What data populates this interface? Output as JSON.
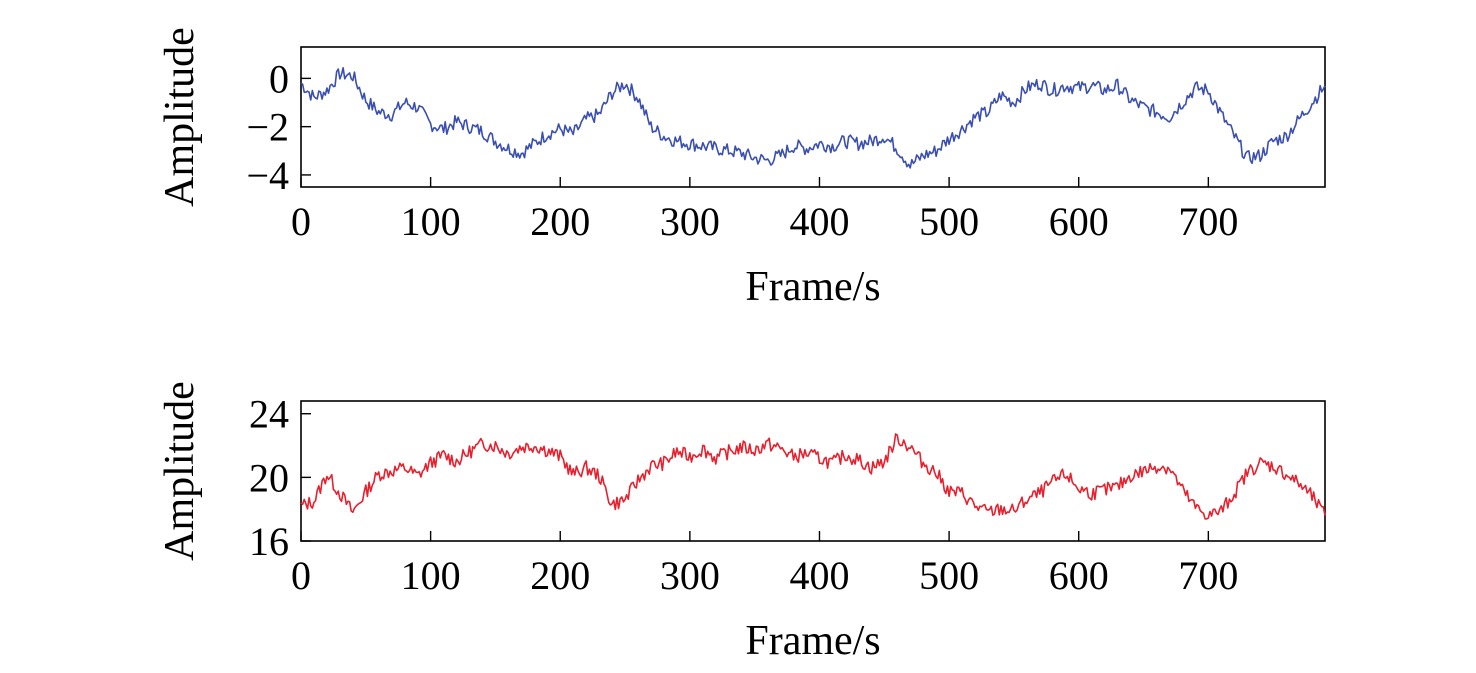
{
  "chart_data": [
    {
      "type": "line",
      "title": "",
      "xlabel": "Frame/s",
      "ylabel": "Amplitude",
      "xlim": [
        0,
        790
      ],
      "ylim": [
        -4.5,
        1.3
      ],
      "xticks": [
        0,
        100,
        200,
        300,
        400,
        500,
        600,
        700
      ],
      "yticks": [
        -4,
        -2,
        0
      ],
      "ytick_labels": [
        "−4",
        "−2",
        "0"
      ],
      "grid": false,
      "series": [
        {
          "color": "#3a4fb0",
          "x": [
            0,
            10,
            20,
            30,
            40,
            50,
            60,
            70,
            80,
            90,
            100,
            110,
            120,
            130,
            140,
            150,
            160,
            170,
            180,
            190,
            200,
            210,
            220,
            230,
            240,
            250,
            260,
            270,
            280,
            290,
            300,
            310,
            320,
            330,
            340,
            350,
            360,
            370,
            380,
            390,
            400,
            410,
            420,
            430,
            440,
            450,
            460,
            470,
            480,
            490,
            500,
            510,
            520,
            530,
            540,
            550,
            560,
            570,
            580,
            590,
            600,
            610,
            620,
            630,
            640,
            650,
            660,
            670,
            680,
            690,
            700,
            710,
            720,
            730,
            740,
            750,
            760,
            770,
            780,
            790
          ],
          "values": [
            -0.2,
            -0.8,
            -0.5,
            0.2,
            0.1,
            -0.9,
            -1.4,
            -1.5,
            -1.0,
            -1.2,
            -1.9,
            -2.1,
            -1.8,
            -2.0,
            -2.2,
            -2.6,
            -2.9,
            -3.1,
            -2.7,
            -2.3,
            -2.1,
            -2.3,
            -1.7,
            -1.5,
            -0.6,
            -0.2,
            -0.8,
            -2.0,
            -2.4,
            -2.6,
            -2.7,
            -2.8,
            -2.9,
            -3.0,
            -3.1,
            -3.3,
            -3.4,
            -3.2,
            -2.8,
            -2.9,
            -2.7,
            -2.8,
            -2.6,
            -2.7,
            -2.6,
            -2.4,
            -2.9,
            -3.6,
            -3.2,
            -3.0,
            -2.5,
            -2.1,
            -1.6,
            -1.4,
            -0.7,
            -1.0,
            -0.4,
            -0.2,
            -0.5,
            -0.3,
            -0.4,
            -0.3,
            -0.5,
            -0.3,
            -0.9,
            -1.2,
            -1.4,
            -1.6,
            -1.0,
            -0.4,
            -0.5,
            -1.5,
            -2.4,
            -3.3,
            -3.2,
            -2.6,
            -2.4,
            -1.7,
            -1.0,
            -0.3
          ]
        }
      ]
    },
    {
      "type": "line",
      "title": "",
      "xlabel": "Frame/s",
      "ylabel": "Amplitude",
      "xlim": [
        0,
        790
      ],
      "ylim": [
        16,
        24.8
      ],
      "xticks": [
        0,
        100,
        200,
        300,
        400,
        500,
        600,
        700
      ],
      "yticks": [
        16,
        20,
        24
      ],
      "ytick_labels": [
        "16",
        "20",
        "24"
      ],
      "grid": false,
      "series": [
        {
          "color": "#e8202e",
          "x": [
            0,
            10,
            20,
            30,
            40,
            50,
            60,
            70,
            80,
            90,
            100,
            110,
            120,
            130,
            140,
            150,
            160,
            170,
            180,
            190,
            200,
            210,
            220,
            230,
            240,
            250,
            260,
            270,
            280,
            290,
            300,
            310,
            320,
            330,
            340,
            350,
            360,
            370,
            380,
            390,
            400,
            410,
            420,
            430,
            440,
            450,
            460,
            470,
            480,
            490,
            500,
            510,
            520,
            530,
            540,
            550,
            560,
            570,
            580,
            590,
            600,
            610,
            620,
            630,
            640,
            650,
            660,
            670,
            680,
            690,
            700,
            710,
            720,
            730,
            740,
            750,
            760,
            770,
            780,
            790
          ],
          "values": [
            18.2,
            18.5,
            20.2,
            19.0,
            17.8,
            19.1,
            20.2,
            20.4,
            20.6,
            20.1,
            20.9,
            21.4,
            21.0,
            21.6,
            22.1,
            22.0,
            21.5,
            21.9,
            22.0,
            21.7,
            21.3,
            20.2,
            20.6,
            20.1,
            18.3,
            18.6,
            19.8,
            20.7,
            20.9,
            21.6,
            21.3,
            21.8,
            21.2,
            21.6,
            21.9,
            21.7,
            22.1,
            21.8,
            21.3,
            21.5,
            21.2,
            20.9,
            21.4,
            21.1,
            20.6,
            21.0,
            22.5,
            21.9,
            20.9,
            20.3,
            19.1,
            19.0,
            18.2,
            17.8,
            18.0,
            17.9,
            18.6,
            19.0,
            19.7,
            20.2,
            19.3,
            19.0,
            19.2,
            19.4,
            20.1,
            20.4,
            20.7,
            20.6,
            19.2,
            18.1,
            17.6,
            17.9,
            19.0,
            20.3,
            20.9,
            20.7,
            20.2,
            19.6,
            18.8,
            17.6
          ]
        }
      ]
    }
  ]
}
